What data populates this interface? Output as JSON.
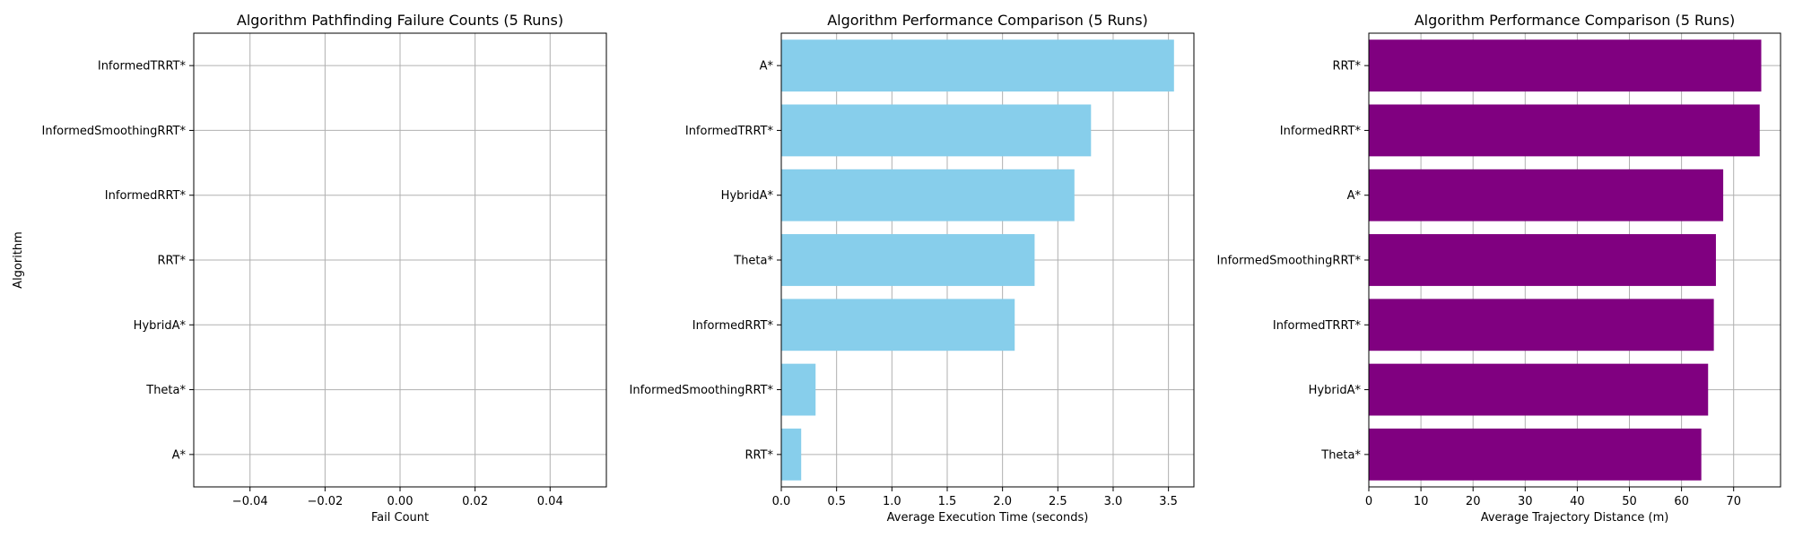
{
  "chart_data": [
    {
      "type": "bar",
      "orientation": "horizontal",
      "title": "Algorithm Pathfinding Failure Counts (5 Runs)",
      "xlabel": "Fail Count",
      "ylabel": "Algorithm",
      "categories": [
        "A*",
        "Theta*",
        "HybridA*",
        "RRT*",
        "InformedRRT*",
        "InformedSmoothingRRT*",
        "InformedTRRT*"
      ],
      "values": [
        0,
        0,
        0,
        0,
        0,
        0,
        0
      ],
      "xlim": [
        -0.055,
        0.055
      ],
      "xticks": [
        -0.04,
        -0.02,
        0.0,
        0.02,
        0.04
      ],
      "xtick_labels": [
        "−0.04",
        "−0.02",
        "0.00",
        "0.02",
        "0.04"
      ],
      "grid": true,
      "color": "#87ceeb"
    },
    {
      "type": "bar",
      "orientation": "horizontal",
      "title": "Algorithm Performance Comparison (5 Runs)",
      "xlabel": "Average Execution Time (seconds)",
      "ylabel": "",
      "categories": [
        "RRT*",
        "InformedSmoothingRRT*",
        "InformedRRT*",
        "Theta*",
        "HybridA*",
        "InformedTRRT*",
        "A*"
      ],
      "values": [
        0.18,
        0.31,
        2.11,
        2.29,
        2.65,
        2.8,
        3.55
      ],
      "xlim": [
        0,
        3.73
      ],
      "xticks": [
        0.0,
        0.5,
        1.0,
        1.5,
        2.0,
        2.5,
        3.0,
        3.5
      ],
      "xtick_labels": [
        "0.0",
        "0.5",
        "1.0",
        "1.5",
        "2.0",
        "2.5",
        "3.0",
        "3.5"
      ],
      "grid": true,
      "color": "#87ceeb"
    },
    {
      "type": "bar",
      "orientation": "horizontal",
      "title": "Algorithm Performance Comparison (5 Runs)",
      "xlabel": "Average Trajectory Distance (m)",
      "ylabel": "",
      "categories": [
        "Theta*",
        "HybridA*",
        "InformedTRRT*",
        "InformedSmoothingRRT*",
        "A*",
        "InformedRRT*",
        "RRT*"
      ],
      "values": [
        63.8,
        65.1,
        66.2,
        66.6,
        68.0,
        75.0,
        75.3
      ],
      "xlim": [
        0,
        79
      ],
      "xticks": [
        0,
        10,
        20,
        30,
        40,
        50,
        60,
        70
      ],
      "xtick_labels": [
        "0",
        "10",
        "20",
        "30",
        "40",
        "50",
        "60",
        "70"
      ],
      "grid": true,
      "color": "#800080"
    }
  ]
}
